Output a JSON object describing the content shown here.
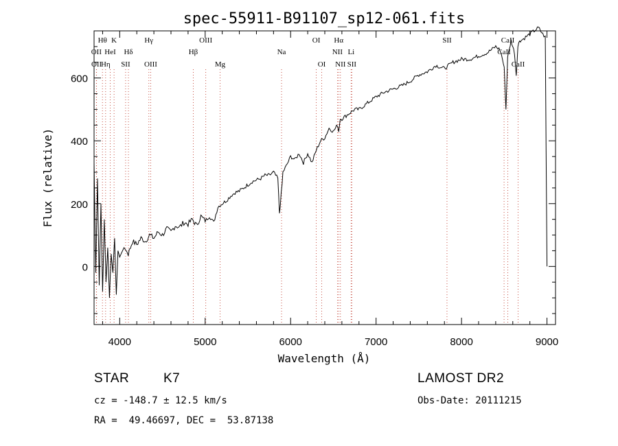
{
  "chart_data": {
    "type": "line",
    "title": "spec-55911-B91107_sp12-061.fits",
    "xlabel": "Wavelength (Å)",
    "ylabel": "Flux (relative)",
    "xlim": [
      3700,
      9100
    ],
    "ylim": [
      -185,
      750
    ],
    "xticks": [
      4000,
      5000,
      6000,
      7000,
      8000,
      9000
    ],
    "yticks": [
      0,
      200,
      400,
      600
    ],
    "grid": false,
    "series": [
      {
        "x": [
          3700,
          3720,
          3740,
          3760,
          3780,
          3800,
          3820,
          3840,
          3860,
          3880,
          3900,
          3920,
          3940,
          3960,
          3980,
          4000,
          4050,
          4100,
          4150,
          4200,
          4250,
          4300,
          4350,
          4400,
          4450,
          4500,
          4550,
          4600,
          4650,
          4700,
          4750,
          4800,
          4850,
          4900,
          4950,
          5000,
          5050,
          5100,
          5150,
          5200,
          5250,
          5300,
          5350,
          5400,
          5450,
          5500,
          5550,
          5600,
          5650,
          5700,
          5750,
          5800,
          5850,
          5870,
          5890,
          5900,
          5910,
          5950,
          6000,
          6050,
          6100,
          6150,
          6200,
          6250,
          6300,
          6350,
          6400,
          6450,
          6500,
          6550,
          6563,
          6580,
          6600,
          6650,
          6700,
          6750,
          6800,
          6850,
          6900,
          6950,
          7000,
          7100,
          7200,
          7300,
          7400,
          7500,
          7600,
          7700,
          7800,
          7900,
          8000,
          8100,
          8200,
          8300,
          8400,
          8450,
          8480,
          8500,
          8520,
          8540,
          8560,
          8580,
          8600,
          8620,
          8640,
          8660,
          8680,
          8700,
          8750,
          8800,
          8850,
          8900,
          8950,
          8980,
          9000
        ],
        "y": [
          330,
          -20,
          280,
          -60,
          200,
          -80,
          150,
          -50,
          60,
          -100,
          40,
          -20,
          90,
          -90,
          50,
          30,
          60,
          40,
          80,
          70,
          90,
          80,
          100,
          90,
          110,
          100,
          120,
          110,
          130,
          125,
          140,
          135,
          150,
          130,
          160,
          145,
          160,
          140,
          190,
          200,
          210,
          225,
          235,
          240,
          250,
          260,
          270,
          275,
          280,
          290,
          290,
          300,
          280,
          170,
          230,
          260,
          300,
          320,
          350,
          340,
          360,
          330,
          360,
          330,
          370,
          400,
          410,
          440,
          430,
          450,
          430,
          470,
          470,
          480,
          490,
          500,
          500,
          510,
          520,
          530,
          540,
          555,
          565,
          575,
          590,
          610,
          620,
          640,
          630,
          650,
          660,
          660,
          670,
          680,
          700,
          690,
          660,
          630,
          500,
          670,
          690,
          720,
          700,
          680,
          610,
          700,
          720,
          720,
          730,
          740,
          750,
          760,
          740,
          730,
          0
        ]
      }
    ],
    "line_list": [
      {
        "label": "Hθ",
        "wave": 3798,
        "row": 1
      },
      {
        "label": "K",
        "wave": 3934,
        "row": 1
      },
      {
        "label": "OII",
        "wave": 3727,
        "row": 2
      },
      {
        "label": "HeI",
        "wave": 3889,
        "row": 2
      },
      {
        "label": "Hδ",
        "wave": 4102,
        "row": 2
      },
      {
        "label": "OII",
        "wave": 3729,
        "row": 3
      },
      {
        "label": "Hη",
        "wave": 3835,
        "row": 3
      },
      {
        "label": "SII",
        "wave": 4069,
        "row": 3
      },
      {
        "label": "Hγ",
        "wave": 4341,
        "row": 1
      },
      {
        "label": "OIII",
        "wave": 4363,
        "row": 3
      },
      {
        "label": "OIII",
        "wave": 5007,
        "row": 1
      },
      {
        "label": "Hβ",
        "wave": 4861,
        "row": 2
      },
      {
        "label": "Mg",
        "wave": 5175,
        "row": 3
      },
      {
        "label": "Na",
        "wave": 5894,
        "row": 2
      },
      {
        "label": "OI",
        "wave": 6300,
        "row": 1
      },
      {
        "label": "OI",
        "wave": 6364,
        "row": 3
      },
      {
        "label": "Hα",
        "wave": 6563,
        "row": 1
      },
      {
        "label": "NII",
        "wave": 6548,
        "row": 2
      },
      {
        "label": "Li",
        "wave": 6708,
        "row": 2
      },
      {
        "label": "NII",
        "wave": 6583,
        "row": 3
      },
      {
        "label": "SII",
        "wave": 6716,
        "row": 3
      },
      {
        "label": "SII",
        "wave": 7830,
        "row": 1
      },
      {
        "label": "CaII",
        "wave": 8542,
        "row": 1
      },
      {
        "label": "CaII",
        "wave": 8498,
        "row": 2
      },
      {
        "label": "CaII",
        "wave": 8662,
        "row": 3
      }
    ]
  },
  "info": {
    "object_class": "STAR",
    "subclass": "K7",
    "survey": "LAMOST DR2",
    "cz": "cz = -148.7 ± 12.5 km/s",
    "obs_date": "Obs-Date: 20111215",
    "coords": "RA =  49.46697, DEC =  53.87138"
  }
}
